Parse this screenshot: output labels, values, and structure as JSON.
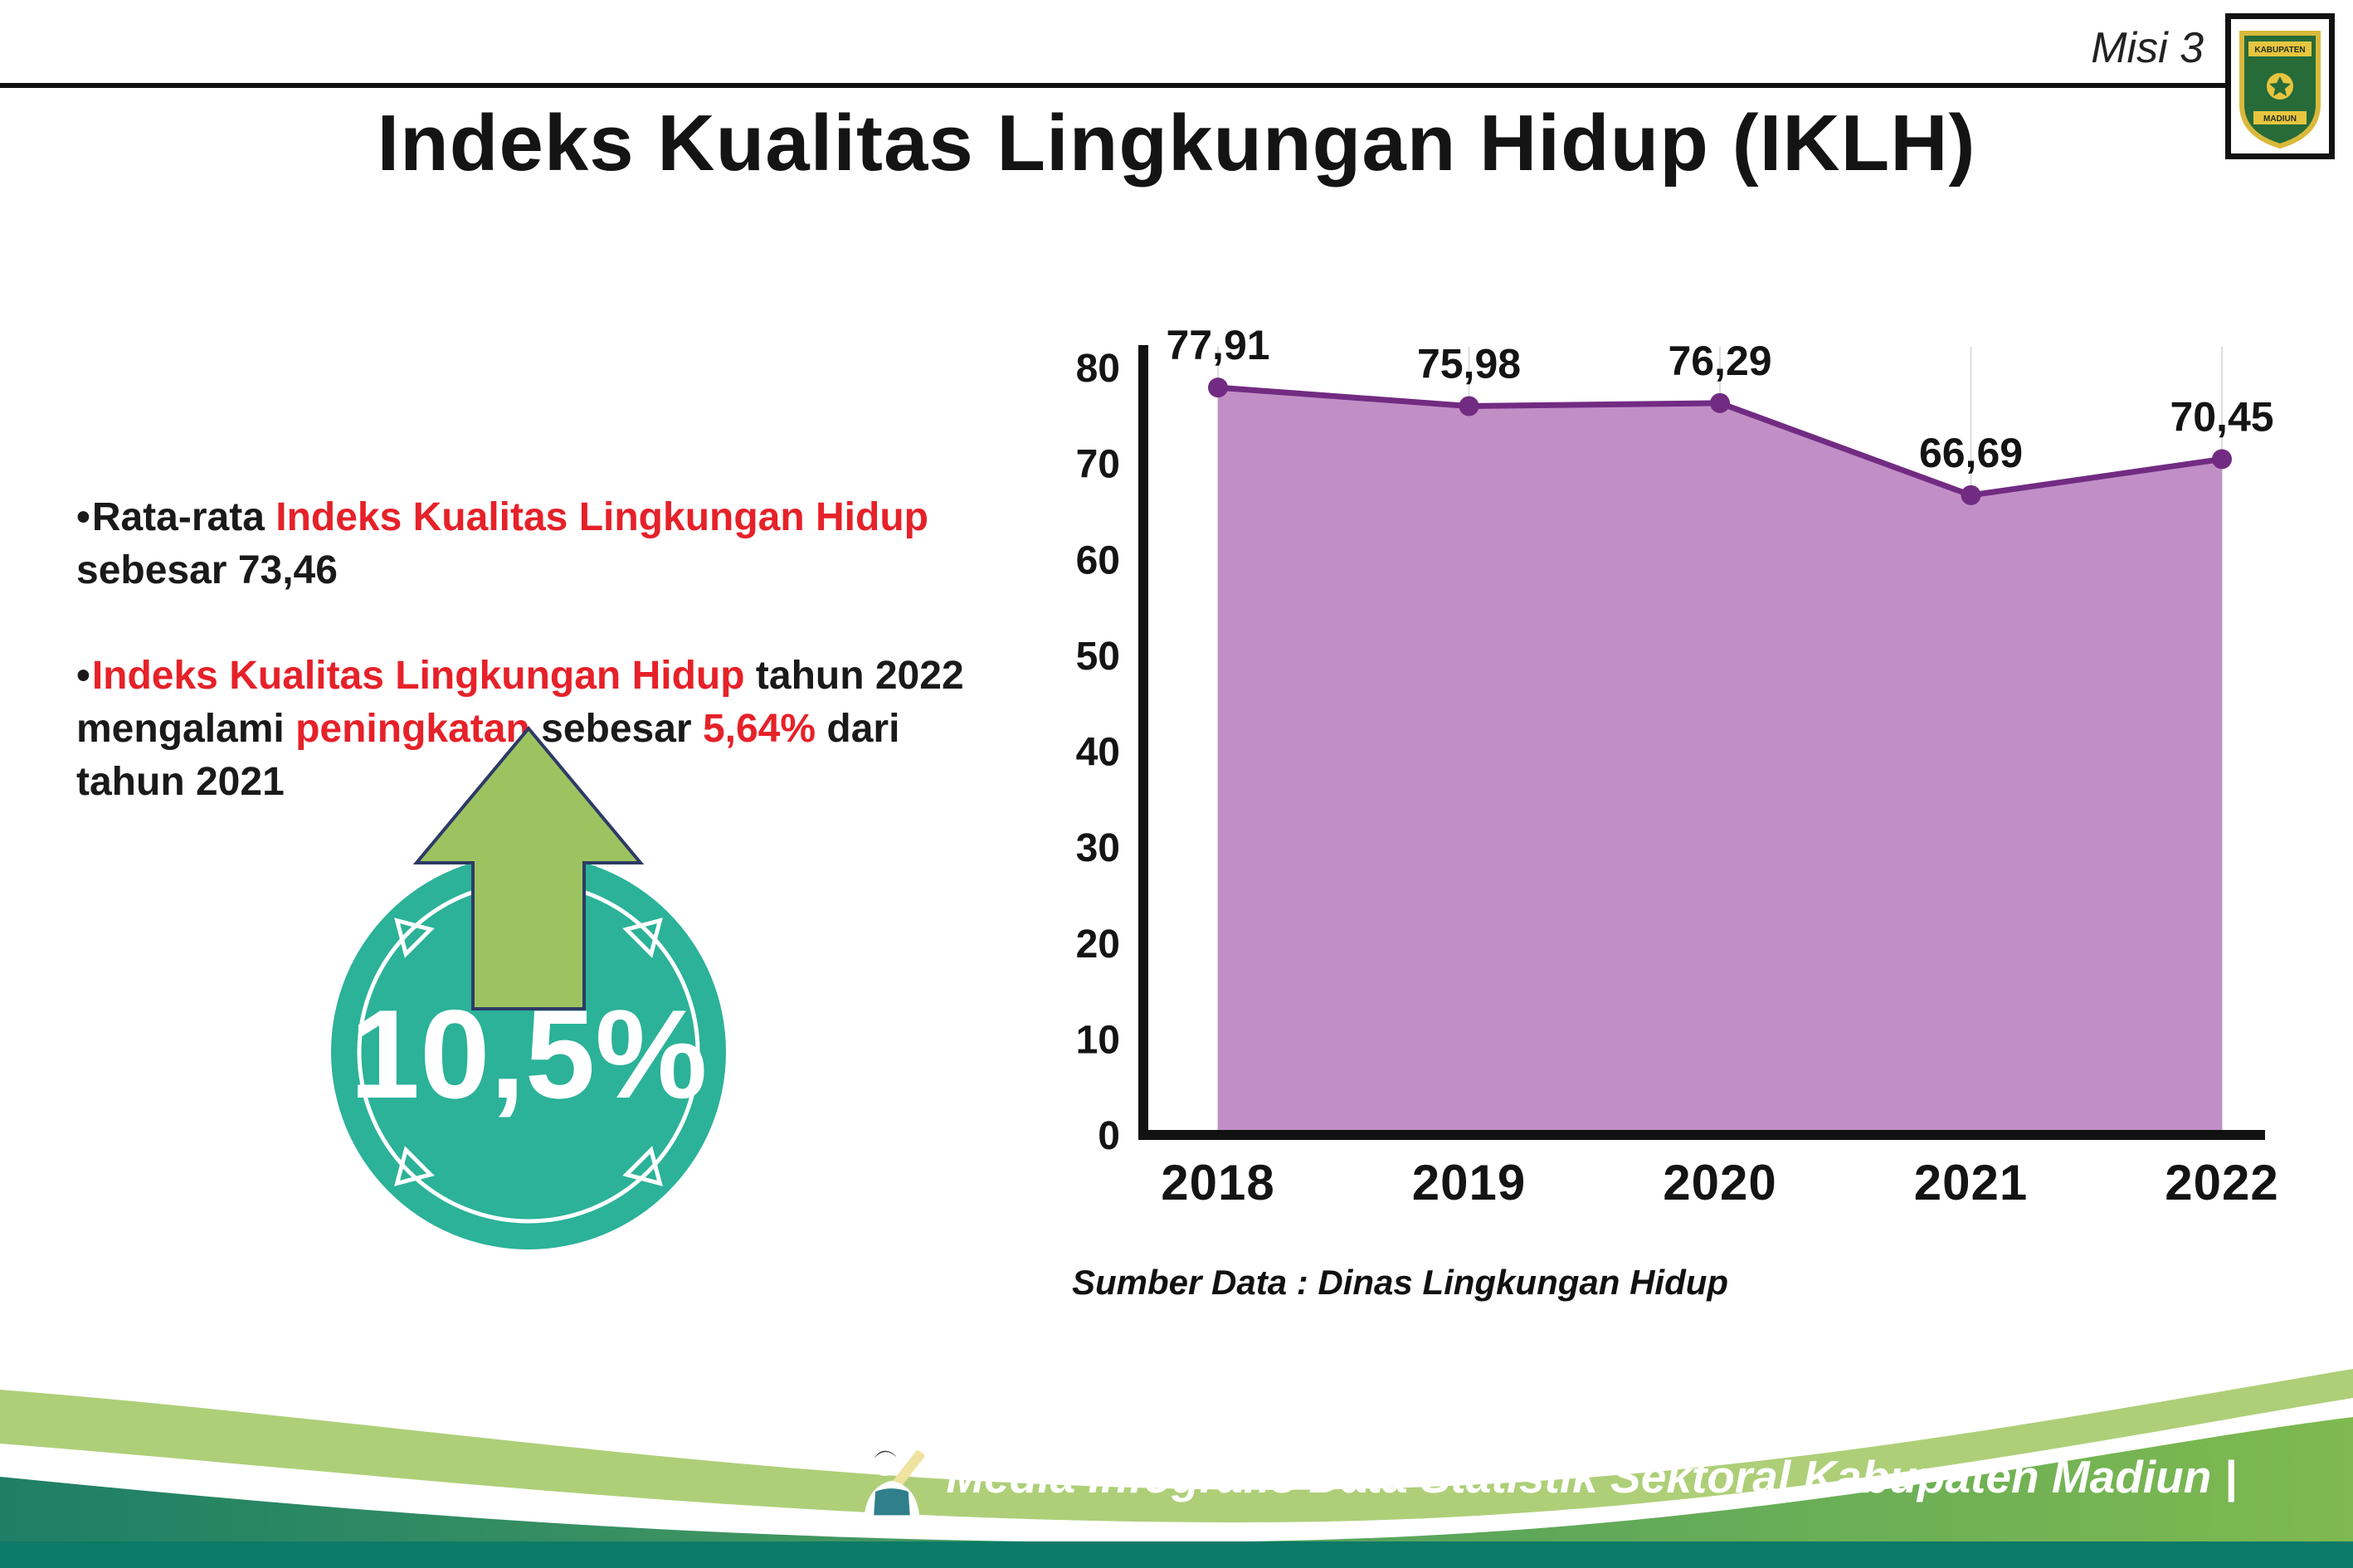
{
  "header": {
    "misi_label": "Misi 3"
  },
  "logo": {
    "top_text": "KABUPATEN",
    "bottom_text": "MADIUN"
  },
  "title": "Indeks Kualitas Lingkungan Hidup (IKLH)",
  "bullet_marker": "•",
  "bullets": [
    {
      "segments": [
        {
          "text": "Rata-rata ",
          "color": "#1a1a1a"
        },
        {
          "text": "Indeks Kualitas Lingkungan Hidup",
          "color": "#e62129"
        },
        {
          "text": " sebesar 73,46",
          "color": "#1a1a1a"
        }
      ]
    },
    {
      "segments": [
        {
          "text": "Indeks Kualitas Lingkungan Hidup",
          "color": "#e62129"
        },
        {
          "text": " tahun 2022 mengalami ",
          "color": "#1a1a1a"
        },
        {
          "text": "peningkatan",
          "color": "#e62129"
        },
        {
          "text": " sebesar ",
          "color": "#1a1a1a"
        },
        {
          "text": "5,64%",
          "color": "#e62129"
        },
        {
          "text": " dari tahun 2021",
          "color": "#1a1a1a"
        }
      ]
    }
  ],
  "badge": {
    "value": "10,5%",
    "circle_color": "#2bb298",
    "arrow_color": "#9dc361"
  },
  "chart_data": {
    "type": "area",
    "categories": [
      "2018",
      "2019",
      "2020",
      "2021",
      "2022"
    ],
    "values": [
      77.91,
      75.98,
      76.29,
      66.69,
      70.45
    ],
    "point_labels": [
      "77,91",
      "75,98",
      "76,29",
      "66,69",
      "70,45"
    ],
    "title": "",
    "xlabel": "",
    "ylabel": "",
    "ylim": [
      0,
      80
    ],
    "yticks": [
      0,
      10,
      20,
      30,
      40,
      50,
      60,
      70,
      80
    ],
    "grid": "vertical-light",
    "legend": "none",
    "line_color": "#722b82",
    "marker_color": "#722b82",
    "fill_color": "#c18fc6",
    "source": "Sumber Data : Dinas Lingkungan Hidup"
  },
  "source_text": "Sumber Data : Dinas Lingkungan Hidup",
  "footer": {
    "credit": "Media Infografis Data Statistik Sektoral Kabupaten Madiun |",
    "gradient_left": "#1e7f66",
    "gradient_right": "#7fb950",
    "strip_color": "#0d7a67"
  }
}
